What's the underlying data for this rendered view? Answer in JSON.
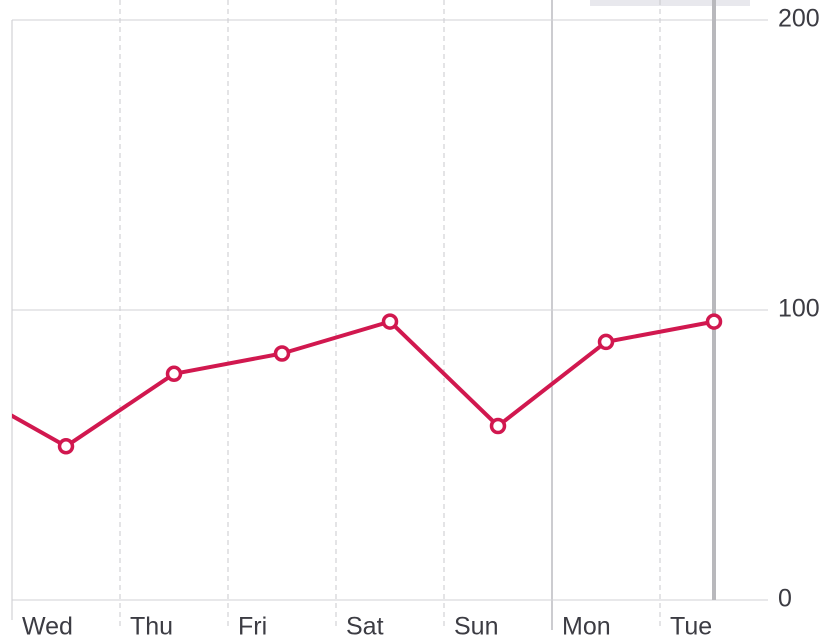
{
  "chart_data": {
    "type": "line",
    "categories": [
      null,
      "Wed",
      "Thu",
      "Fri",
      "Sat",
      "Sun",
      "Mon",
      "Tue"
    ],
    "series": [
      {
        "name": null,
        "color": "#d1184f",
        "values": [
          74,
          53,
          78,
          85,
          96,
          60,
          89,
          96
        ]
      }
    ],
    "ylim": [
      0,
      200
    ],
    "yticks": [
      0,
      100,
      200
    ],
    "grid": true
  }
}
